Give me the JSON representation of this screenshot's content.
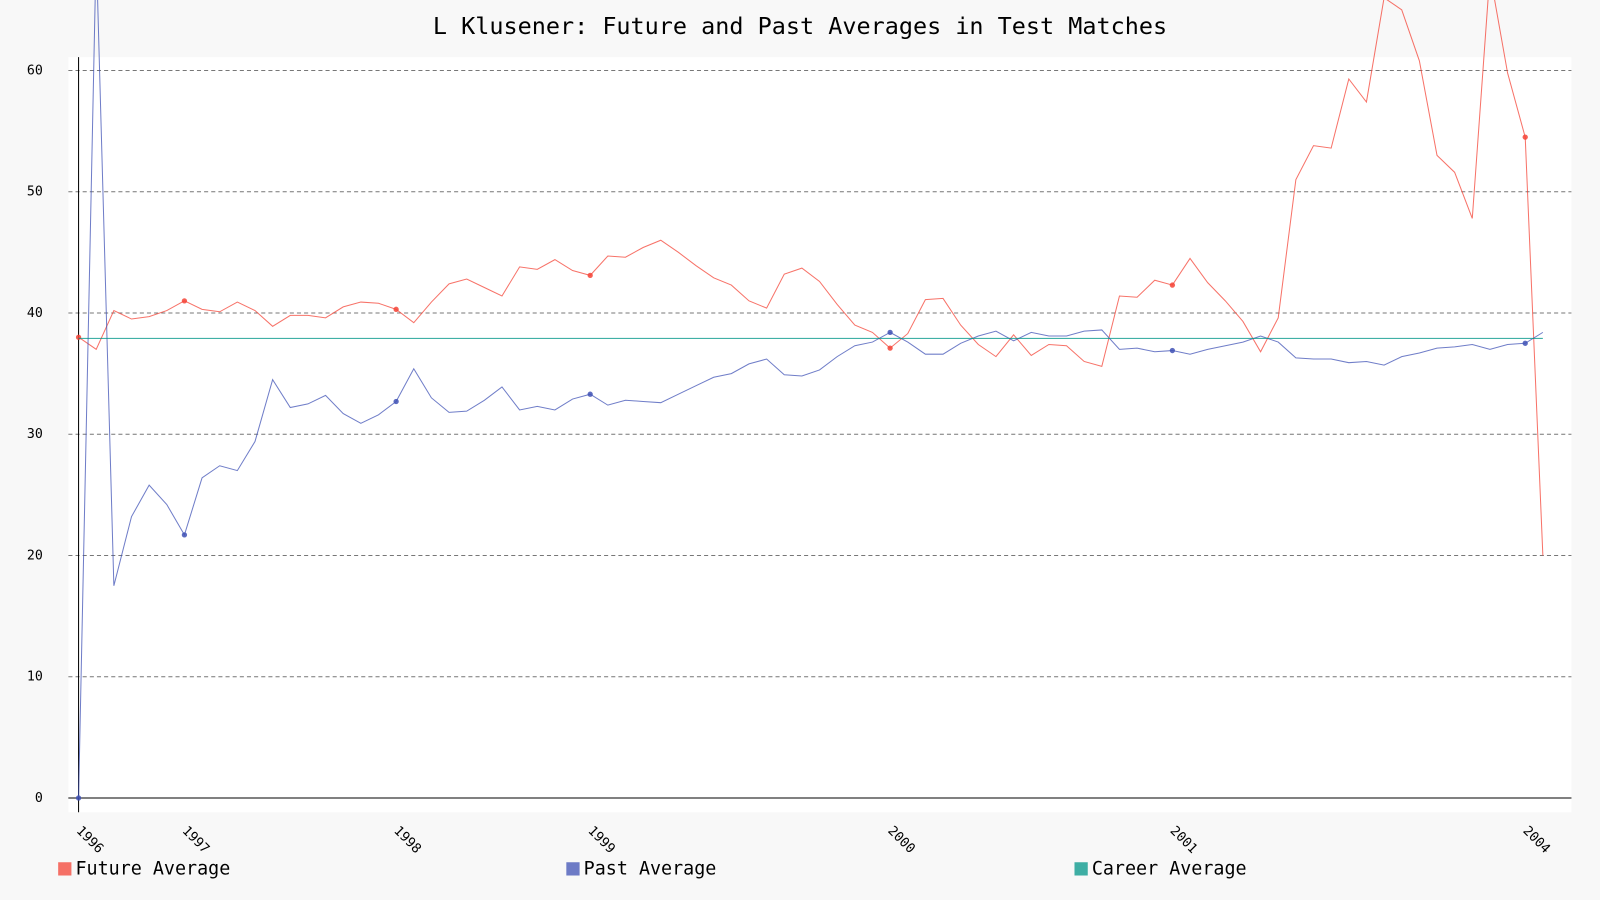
{
  "chart_data": {
    "type": "line",
    "title": "L Klusener: Future and Past Averages in Test Matches",
    "categories": [
      "1996",
      null,
      null,
      null,
      null,
      null,
      "1997",
      null,
      null,
      null,
      null,
      null,
      null,
      null,
      null,
      null,
      null,
      null,
      "1998",
      null,
      null,
      null,
      null,
      null,
      null,
      null,
      null,
      null,
      null,
      "1999",
      null,
      null,
      null,
      null,
      null,
      null,
      null,
      null,
      null,
      null,
      null,
      null,
      null,
      null,
      null,
      null,
      "2000",
      null,
      null,
      null,
      null,
      null,
      null,
      null,
      null,
      null,
      null,
      null,
      null,
      null,
      null,
      null,
      "2001",
      null,
      null,
      null,
      null,
      null,
      null,
      null,
      null,
      null,
      null,
      null,
      null,
      null,
      null,
      null,
      null,
      null,
      null,
      null,
      "2004",
      null
    ],
    "series": [
      {
        "name": "Future Average",
        "color": "#F44336",
        "values": [
          38.0,
          37.0,
          40.2,
          39.5,
          39.7,
          40.2,
          41.0,
          40.3,
          40.1,
          40.9,
          40.2,
          38.9,
          39.8,
          39.8,
          39.6,
          40.5,
          40.9,
          40.8,
          40.3,
          39.2,
          40.9,
          42.4,
          42.8,
          42.1,
          41.4,
          43.8,
          43.6,
          44.4,
          43.5,
          43.1,
          44.7,
          44.6,
          45.4,
          46.0,
          45.0,
          43.9,
          42.9,
          42.3,
          41.0,
          40.4,
          43.2,
          43.7,
          42.6,
          40.7,
          39.0,
          38.4,
          37.1,
          38.3,
          41.1,
          41.2,
          39.0,
          37.4,
          36.4,
          38.2,
          36.5,
          37.4,
          37.3,
          36.0,
          35.6,
          41.4,
          41.3,
          42.7,
          42.3,
          44.5,
          42.5,
          41.0,
          39.3,
          36.8,
          39.6,
          51.0,
          53.8,
          53.6,
          59.3,
          57.4,
          66.0,
          65.0,
          60.8,
          53.0,
          51.6,
          47.8,
          68.0,
          59.8,
          54.5,
          20.0
        ]
      },
      {
        "name": "Past Average",
        "color": "#3F51B5",
        "values": [
          0,
          70.0,
          17.5,
          23.2,
          25.8,
          24.2,
          21.7,
          26.4,
          27.4,
          27.0,
          29.4,
          34.5,
          32.2,
          32.5,
          33.2,
          31.7,
          30.9,
          31.6,
          32.7,
          35.4,
          33.0,
          31.8,
          31.9,
          32.8,
          33.9,
          32.0,
          32.3,
          32.0,
          32.9,
          33.3,
          32.4,
          32.8,
          32.7,
          32.6,
          33.3,
          34.0,
          34.7,
          35.0,
          35.8,
          36.2,
          34.9,
          34.8,
          35.3,
          36.4,
          37.3,
          37.6,
          38.4,
          37.6,
          36.6,
          36.6,
          37.5,
          38.1,
          38.5,
          37.7,
          38.4,
          38.1,
          38.1,
          38.5,
          38.6,
          37.0,
          37.1,
          36.8,
          36.9,
          36.6,
          37.0,
          37.3,
          37.6,
          38.1,
          37.6,
          36.3,
          36.2,
          36.2,
          35.9,
          36.0,
          35.7,
          36.4,
          36.7,
          37.1,
          37.2,
          37.4,
          37.0,
          37.4,
          37.5,
          38.4
        ]
      },
      {
        "name": "Career Average",
        "color": "#009688",
        "values": [
          37.9,
          37.9,
          37.9,
          37.9,
          37.9,
          37.9,
          37.9,
          37.9,
          37.9,
          37.9,
          37.9,
          37.9,
          37.9,
          37.9,
          37.9,
          37.9,
          37.9,
          37.9,
          37.9,
          37.9,
          37.9,
          37.9,
          37.9,
          37.9,
          37.9,
          37.9,
          37.9,
          37.9,
          37.9,
          37.9,
          37.9,
          37.9,
          37.9,
          37.9,
          37.9,
          37.9,
          37.9,
          37.9,
          37.9,
          37.9,
          37.9,
          37.9,
          37.9,
          37.9,
          37.9,
          37.9,
          37.9,
          37.9,
          37.9,
          37.9,
          37.9,
          37.9,
          37.9,
          37.9,
          37.9,
          37.9,
          37.9,
          37.9,
          37.9,
          37.9,
          37.9,
          37.9,
          37.9,
          37.9,
          37.9,
          37.9,
          37.9,
          37.9,
          37.9,
          37.9,
          37.9,
          37.9,
          37.9,
          37.9,
          37.9,
          37.9,
          37.9,
          37.9,
          37.9,
          37.9,
          37.9,
          37.9,
          37.9,
          37.9
        ]
      }
    ],
    "ylim": [
      0,
      61.1
    ],
    "yticks": [
      0,
      10,
      20,
      30,
      40,
      50,
      60
    ],
    "grid": true
  }
}
